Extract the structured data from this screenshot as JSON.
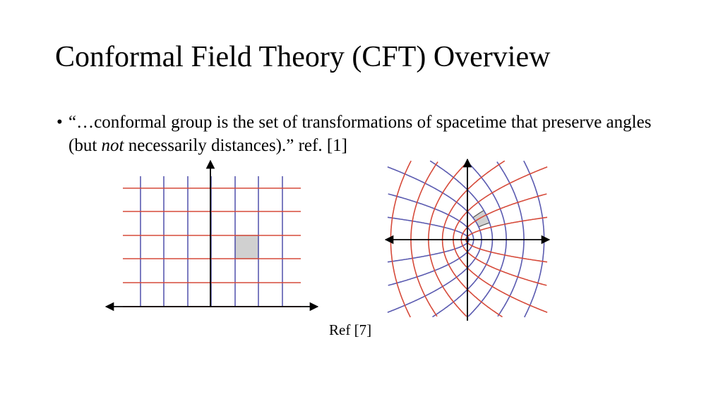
{
  "slide": {
    "title": "Conformal Field Theory (CFT) Overview",
    "bullet": {
      "part1": "“…conformal group is the set of transformations of spacetime that preserve angles (but ",
      "emphasis": "not",
      "part2": " necessarily distances).” ref. [1]"
    },
    "figure_ref": "Ref [7]"
  },
  "figures": {
    "left": {
      "description_type": "orthogonal-grid",
      "vertical_line_count": 7,
      "horizontal_line_count": 6,
      "highlighted_cell": {
        "column": 5,
        "row": 4
      }
    },
    "right": {
      "description_type": "conformally-mapped-grid",
      "highlighted_cell": "first-quadrant-near-origin"
    }
  },
  "colors": {
    "red_lines": "#d64a3a",
    "blue_lines": "#5a5ab0",
    "axes": "#000000",
    "highlight_fill": "#d0d0d0",
    "highlight_stroke": "#555555"
  }
}
